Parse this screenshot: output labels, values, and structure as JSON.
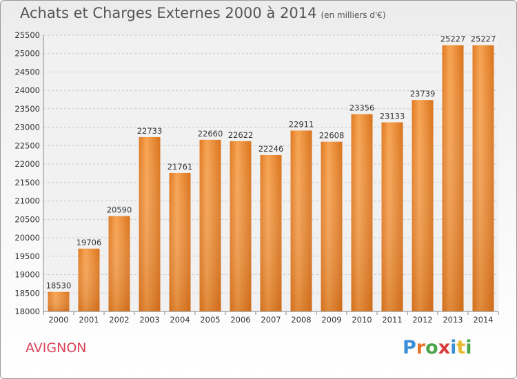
{
  "header": {
    "title": "Achats et Charges Externes 2000 à 2014",
    "subtitle": "(en milliers d'€)"
  },
  "footer": {
    "city": "AVIGNON",
    "logo_letters": [
      "P",
      "r",
      "o",
      "x",
      "i",
      "t",
      "i"
    ],
    "logo_colors": [
      "#3a8fd6",
      "#e8742c",
      "#4aa54a",
      "#d93b3b",
      "#3a8fd6",
      "#e8b92c",
      "#4aa54a"
    ]
  },
  "chart_data": {
    "type": "bar",
    "title": "Achats et Charges Externes 2000 à 2014",
    "subtitle": "(en milliers d'€)",
    "categories": [
      "2000",
      "2001",
      "2002",
      "2003",
      "2004",
      "2005",
      "2006",
      "2007",
      "2008",
      "2009",
      "2010",
      "2011",
      "2012",
      "2013",
      "2014"
    ],
    "values": [
      18530,
      19706,
      20590,
      22733,
      21761,
      22660,
      22622,
      22246,
      22911,
      22608,
      23356,
      23133,
      23739,
      25227,
      25227
    ],
    "data_labels": [
      "18530",
      "19706",
      "20590",
      "22733",
      "21761",
      "22660",
      "22622",
      "22246",
      "22911",
      "22608",
      "23356",
      "23133",
      "23739",
      "25227",
      "25227"
    ],
    "ylim": [
      18000,
      25500
    ],
    "yticks": [
      "18000",
      "18500",
      "19000",
      "19500",
      "20000",
      "20500",
      "21000",
      "21500",
      "22000",
      "22500",
      "23000",
      "23500",
      "24000",
      "24500",
      "25000",
      "25500"
    ],
    "grid": true,
    "bar_color": "#ee8a2e"
  }
}
